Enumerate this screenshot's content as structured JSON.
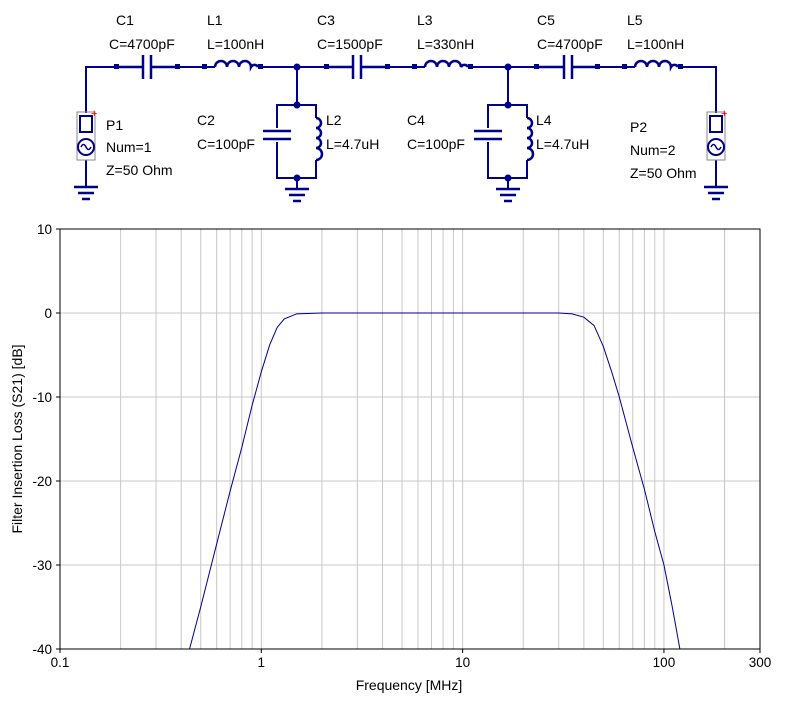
{
  "schematic": {
    "C1": {
      "name": "C1",
      "value": "C=4700pF"
    },
    "L1": {
      "name": "L1",
      "value": "L=100nH"
    },
    "C3": {
      "name": "C3",
      "value": "C=1500pF"
    },
    "L3": {
      "name": "L3",
      "value": "L=330nH"
    },
    "C5": {
      "name": "C5",
      "value": "C=4700pF"
    },
    "L5": {
      "name": "L5",
      "value": "L=100nH"
    },
    "C2": {
      "name": "C2",
      "value": "C=100pF"
    },
    "L2": {
      "name": "L2",
      "value": "L=4.7uH"
    },
    "C4": {
      "name": "C4",
      "value": "C=100pF"
    },
    "L4": {
      "name": "L4",
      "value": "L=4.7uH"
    },
    "P1": {
      "name": "P1",
      "num": "Num=1",
      "z": "Z=50 Ohm"
    },
    "P2": {
      "name": "P2",
      "num": "Num=2",
      "z": "Z=50 Ohm"
    },
    "wire_color": "#00008b",
    "port_plus_color": "#ff0000"
  },
  "chart_data": {
    "type": "line",
    "xlabel": "Frequency [MHz]",
    "ylabel": "Filter Insertion Loss (S21) [dB]",
    "x_scale": "log",
    "xlim": [
      0.1,
      300
    ],
    "ylim": [
      -40,
      10
    ],
    "x_ticks": [
      "0.1",
      "1",
      "10",
      "100",
      "300"
    ],
    "x_tick_values": [
      0.1,
      1,
      10,
      100,
      300
    ],
    "y_ticks": [
      "10",
      "0",
      "-10",
      "-20",
      "-30",
      "-40"
    ],
    "y_tick_values": [
      10,
      0,
      -10,
      -20,
      -30,
      -40
    ],
    "grid": true,
    "line_color": "#00008b",
    "series": [
      {
        "x": [
          0.44,
          0.5,
          0.6,
          0.7,
          0.8,
          0.9,
          1.0,
          1.1,
          1.2,
          1.3,
          1.5,
          2,
          5,
          10,
          20,
          30,
          35,
          40,
          45,
          50,
          55,
          60,
          70,
          80,
          90,
          100,
          110,
          120
        ],
        "y": [
          -40,
          -35,
          -27.5,
          -21.2,
          -16,
          -11,
          -7,
          -3.8,
          -1.7,
          -0.7,
          -0.1,
          0,
          0,
          0,
          0,
          0,
          -0.1,
          -0.5,
          -1.5,
          -4,
          -7,
          -10,
          -16,
          -21,
          -26,
          -30,
          -35,
          -40
        ]
      }
    ]
  }
}
